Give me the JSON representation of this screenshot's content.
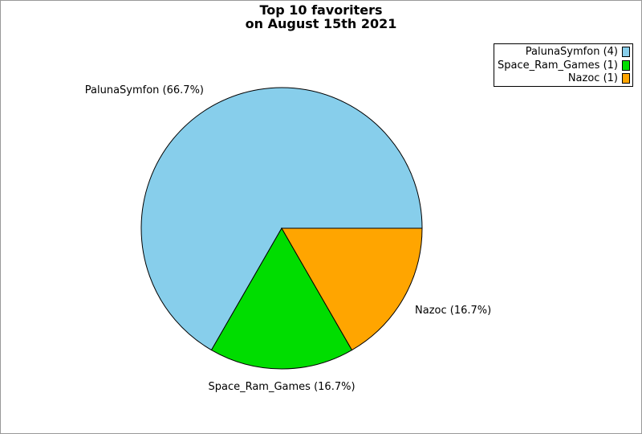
{
  "title": {
    "line1": "Top 10 favoriters",
    "line2": "on August 15th 2021"
  },
  "legend": {
    "position": "top-right",
    "items": [
      {
        "label": "PalunaSymfon (4)",
        "color": "#87CEEB"
      },
      {
        "label": "Space_Ram_Games (1)",
        "color": "#00DD00"
      },
      {
        "label": "Nazoc (1)",
        "color": "#FFA500"
      }
    ]
  },
  "chart_data": {
    "type": "pie",
    "title": "Top 10 favoriters on August 15th 2021",
    "start_angle_deg": 0,
    "direction": "counterclockwise",
    "legend_position": "top-right",
    "slices": [
      {
        "label": "PalunaSymfon",
        "count": 4,
        "percent": 66.7,
        "color": "#87CEEB",
        "display_label": "PalunaSymfon (66.7%)"
      },
      {
        "label": "Space_Ram_Games",
        "count": 1,
        "percent": 16.7,
        "color": "#00DD00",
        "display_label": "Space_Ram_Games (16.7%)"
      },
      {
        "label": "Nazoc",
        "count": 1,
        "percent": 16.7,
        "color": "#FFA500",
        "display_label": "Nazoc (16.7%)"
      }
    ]
  },
  "colors": {
    "background": "#FFFFFF",
    "canvas_border": "#999999",
    "slice_outline": "#000000",
    "text": "#000000"
  }
}
